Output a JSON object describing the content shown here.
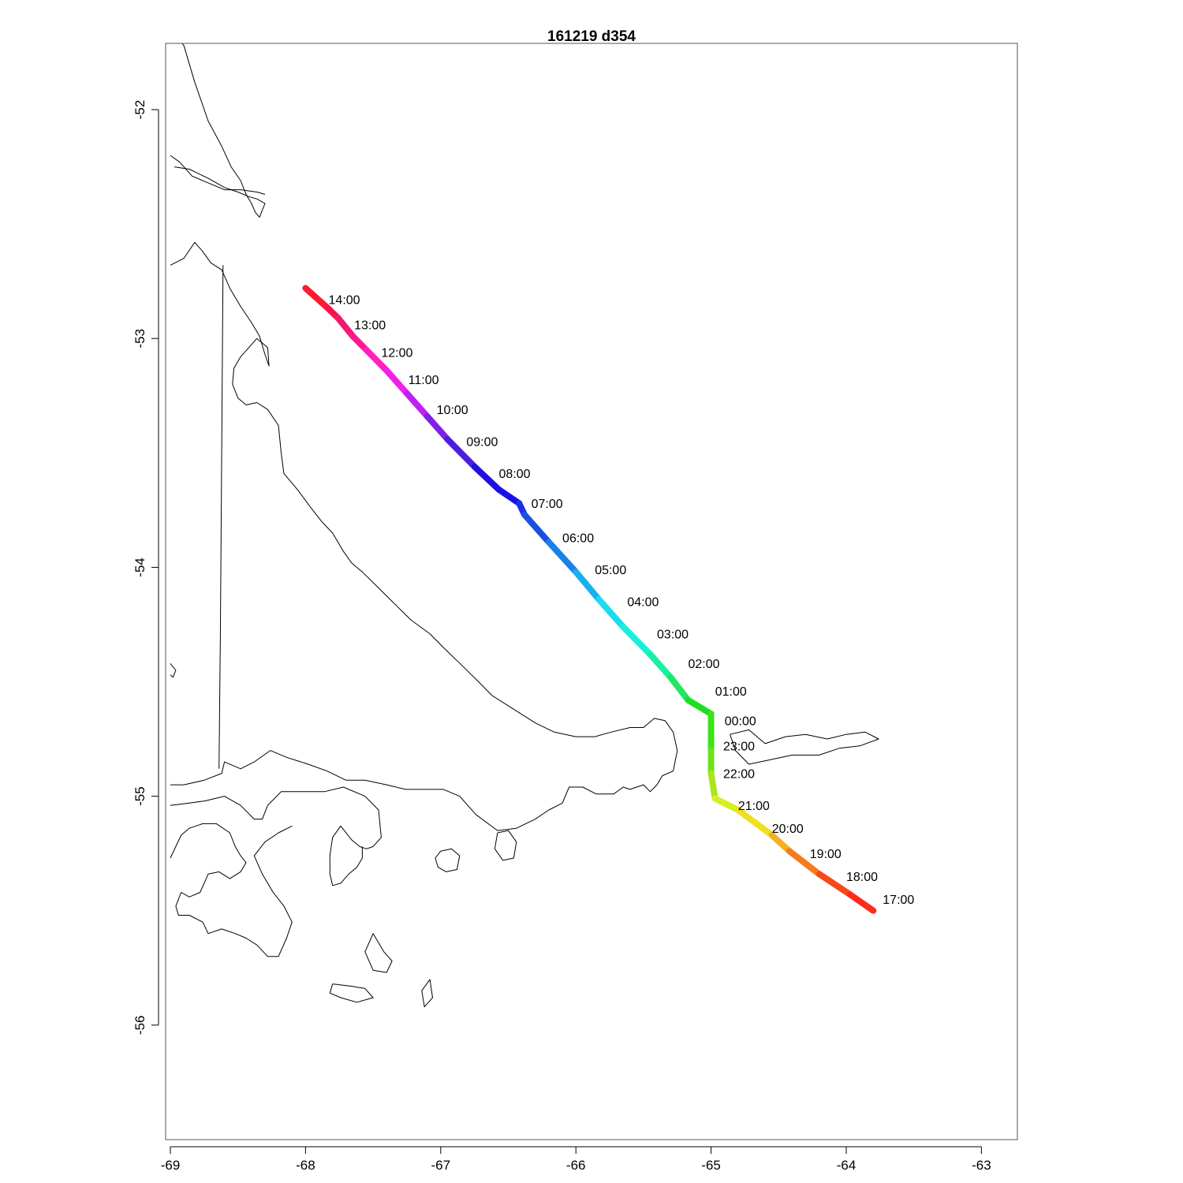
{
  "map": {
    "title": "161219   d354",
    "x_axis": {
      "range": [
        -69.0,
        -62.75
      ],
      "ticks": [
        -69,
        -68,
        -67,
        -66,
        -65,
        -64,
        -63
      ],
      "tick_labels": [
        "-69",
        "-68",
        "-67",
        "-66",
        "-65",
        "-64",
        "-63"
      ]
    },
    "y_axis": {
      "range": [
        -56.5,
        -51.7
      ],
      "ticks": [
        -52,
        -53,
        -54,
        -55,
        -56
      ],
      "tick_labels": [
        "-52",
        "-53",
        "-54",
        "-55",
        "-56"
      ]
    },
    "track": {
      "color_scale": "rainbow hue over time",
      "points": [
        {
          "lon": -68.0,
          "lat": -52.78,
          "color": "#ff1a1a"
        },
        {
          "lon": -67.83,
          "lat": -52.87,
          "color": "#ff1a33"
        },
        {
          "lon": -67.76,
          "lat": -52.91,
          "color": "#f5144d"
        },
        {
          "lon": -67.65,
          "lat": -52.99,
          "color": "#f01a70"
        },
        {
          "lon": -67.55,
          "lat": -53.05,
          "color": "#ff1a90"
        },
        {
          "lon": -67.4,
          "lat": -53.14,
          "color": "#ff20c0"
        },
        {
          "lon": -67.25,
          "lat": -53.24,
          "color": "#f020e8"
        },
        {
          "lon": -67.1,
          "lat": -53.34,
          "color": "#c020f0"
        },
        {
          "lon": -66.95,
          "lat": -53.44,
          "color": "#8020e8"
        },
        {
          "lon": -66.75,
          "lat": -53.56,
          "color": "#4a20dc"
        },
        {
          "lon": -66.57,
          "lat": -53.66,
          "color": "#2010e0"
        },
        {
          "lon": -66.42,
          "lat": -53.72,
          "color": "#1a10e8"
        },
        {
          "lon": -66.38,
          "lat": -53.77,
          "color": "#1a30e8"
        },
        {
          "lon": -66.2,
          "lat": -53.89,
          "color": "#1a50e0"
        },
        {
          "lon": -66.0,
          "lat": -54.02,
          "color": "#1a80ea"
        },
        {
          "lon": -65.83,
          "lat": -54.14,
          "color": "#1ab0f0"
        },
        {
          "lon": -65.65,
          "lat": -54.26,
          "color": "#1adcf0"
        },
        {
          "lon": -65.45,
          "lat": -54.38,
          "color": "#1af0d8"
        },
        {
          "lon": -65.3,
          "lat": -54.48,
          "color": "#1af0a0"
        },
        {
          "lon": -65.17,
          "lat": -54.58,
          "color": "#20e860"
        },
        {
          "lon": -65.0,
          "lat": -54.64,
          "color": "#1ae020"
        },
        {
          "lon": -65.0,
          "lat": -54.8,
          "color": "#40e01a"
        },
        {
          "lon": -65.0,
          "lat": -54.9,
          "color": "#70e01a"
        },
        {
          "lon": -64.97,
          "lat": -55.01,
          "color": "#a8e61a"
        },
        {
          "lon": -64.8,
          "lat": -55.06,
          "color": "#d8f020"
        },
        {
          "lon": -64.55,
          "lat": -55.17,
          "color": "#f0e020"
        },
        {
          "lon": -64.42,
          "lat": -55.24,
          "color": "#f5b020"
        },
        {
          "lon": -64.2,
          "lat": -55.34,
          "color": "#f57a20"
        },
        {
          "lon": -63.97,
          "lat": -55.43,
          "color": "#f54a1a"
        },
        {
          "lon": -63.8,
          "lat": -55.5,
          "color": "#ff2a1a"
        }
      ],
      "time_labels": [
        {
          "text": "14:00",
          "lon": -67.83,
          "lat": -52.85
        },
        {
          "text": "13:00",
          "lon": -67.64,
          "lat": -52.96
        },
        {
          "text": "12:00",
          "lon": -67.44,
          "lat": -53.08
        },
        {
          "text": "11:00",
          "lon": -67.24,
          "lat": -53.2
        },
        {
          "text": "10:00",
          "lon": -67.03,
          "lat": -53.33
        },
        {
          "text": "09:00",
          "lon": -66.81,
          "lat": -53.47
        },
        {
          "text": "08:00",
          "lon": -66.57,
          "lat": -53.61
        },
        {
          "text": "07:00",
          "lon": -66.33,
          "lat": -53.74
        },
        {
          "text": "06:00",
          "lon": -66.1,
          "lat": -53.89
        },
        {
          "text": "05:00",
          "lon": -65.86,
          "lat": -54.03
        },
        {
          "text": "04:00",
          "lon": -65.62,
          "lat": -54.17
        },
        {
          "text": "03:00",
          "lon": -65.4,
          "lat": -54.31
        },
        {
          "text": "02:00",
          "lon": -65.17,
          "lat": -54.44
        },
        {
          "text": "01:00",
          "lon": -64.97,
          "lat": -54.56
        },
        {
          "text": "00:00",
          "lon": -64.9,
          "lat": -54.69
        },
        {
          "text": "23:00",
          "lon": -64.91,
          "lat": -54.8
        },
        {
          "text": "22:00",
          "lon": -64.91,
          "lat": -54.92
        },
        {
          "text": "21:00",
          "lon": -64.8,
          "lat": -55.06
        },
        {
          "text": "20:00",
          "lon": -64.55,
          "lat": -55.16
        },
        {
          "text": "19:00",
          "lon": -64.27,
          "lat": -55.27
        },
        {
          "text": "18:00",
          "lon": -64.0,
          "lat": -55.37
        },
        {
          "text": "17:00",
          "lon": -63.73,
          "lat": -55.47
        }
      ]
    },
    "coastlines": [
      [
        [
          -69.0,
          -51.65
        ],
        [
          -68.9,
          -51.72
        ],
        [
          -68.82,
          -51.88
        ],
        [
          -68.72,
          -52.05
        ],
        [
          -68.62,
          -52.16
        ],
        [
          -68.55,
          -52.25
        ],
        [
          -68.48,
          -52.31
        ],
        [
          -68.44,
          -52.37
        ],
        [
          -68.4,
          -52.41
        ],
        [
          -68.37,
          -52.45
        ],
        [
          -68.34,
          -52.47
        ],
        [
          -68.3,
          -52.41
        ],
        [
          -68.36,
          -52.39
        ],
        [
          -68.42,
          -52.38
        ],
        [
          -68.5,
          -52.36
        ],
        [
          -68.6,
          -52.34
        ],
        [
          -68.72,
          -52.3
        ],
        [
          -68.86,
          -52.26
        ],
        [
          -68.97,
          -52.25
        ]
      ],
      [
        [
          -69.0,
          -52.2
        ],
        [
          -68.93,
          -52.23
        ],
        [
          -68.84,
          -52.29
        ],
        [
          -68.72,
          -52.32
        ],
        [
          -68.6,
          -52.35
        ],
        [
          -68.48,
          -52.35
        ],
        [
          -68.36,
          -52.36
        ],
        [
          -68.3,
          -52.37
        ]
      ],
      [
        [
          -69.0,
          -52.68
        ],
        [
          -68.9,
          -52.65
        ],
        [
          -68.82,
          -52.58
        ],
        [
          -68.76,
          -52.62
        ],
        [
          -68.7,
          -52.67
        ],
        [
          -68.62,
          -52.7
        ],
        [
          -68.56,
          -52.78
        ],
        [
          -68.48,
          -52.86
        ],
        [
          -68.4,
          -52.93
        ],
        [
          -68.34,
          -52.99
        ],
        [
          -68.3,
          -53.07
        ],
        [
          -68.27,
          -53.12
        ],
        [
          -68.28,
          -53.04
        ],
        [
          -68.32,
          -53.02
        ],
        [
          -68.36,
          -53.0
        ],
        [
          -68.42,
          -53.04
        ],
        [
          -68.48,
          -53.08
        ],
        [
          -68.53,
          -53.13
        ],
        [
          -68.54,
          -53.2
        ],
        [
          -68.5,
          -53.26
        ],
        [
          -68.44,
          -53.29
        ],
        [
          -68.36,
          -53.28
        ],
        [
          -68.28,
          -53.31
        ],
        [
          -68.2,
          -53.38
        ],
        [
          -68.18,
          -53.5
        ],
        [
          -68.16,
          -53.59
        ],
        [
          -68.06,
          -53.66
        ],
        [
          -67.96,
          -53.74
        ],
        [
          -67.88,
          -53.8
        ],
        [
          -67.8,
          -53.85
        ],
        [
          -67.72,
          -53.93
        ],
        [
          -67.66,
          -53.98
        ],
        [
          -67.58,
          -54.02
        ],
        [
          -67.46,
          -54.09
        ],
        [
          -67.34,
          -54.16
        ],
        [
          -67.22,
          -54.23
        ],
        [
          -67.08,
          -54.29
        ],
        [
          -66.98,
          -54.35
        ],
        [
          -66.84,
          -54.43
        ],
        [
          -66.72,
          -54.5
        ],
        [
          -66.62,
          -54.56
        ],
        [
          -66.46,
          -54.62
        ],
        [
          -66.3,
          -54.68
        ],
        [
          -66.16,
          -54.72
        ],
        [
          -66.0,
          -54.74
        ],
        [
          -65.86,
          -54.74
        ],
        [
          -65.74,
          -54.72
        ],
        [
          -65.6,
          -54.7
        ],
        [
          -65.5,
          -54.7
        ],
        [
          -65.42,
          -54.66
        ],
        [
          -65.34,
          -54.67
        ],
        [
          -65.28,
          -54.72
        ],
        [
          -65.25,
          -54.8
        ],
        [
          -65.28,
          -54.89
        ],
        [
          -65.36,
          -54.91
        ],
        [
          -65.4,
          -54.95
        ],
        [
          -65.45,
          -54.98
        ],
        [
          -65.5,
          -54.95
        ],
        [
          -65.55,
          -54.96
        ],
        [
          -65.6,
          -54.97
        ],
        [
          -65.65,
          -54.96
        ],
        [
          -65.72,
          -54.99
        ],
        [
          -65.85,
          -54.99
        ],
        [
          -65.95,
          -54.96
        ],
        [
          -66.05,
          -54.96
        ],
        [
          -66.1,
          -55.03
        ],
        [
          -66.2,
          -55.06
        ],
        [
          -66.3,
          -55.1
        ],
        [
          -66.44,
          -55.14
        ],
        [
          -66.58,
          -55.15
        ],
        [
          -66.74,
          -55.08
        ],
        [
          -66.86,
          -55.0
        ],
        [
          -66.98,
          -54.97
        ],
        [
          -67.12,
          -54.97
        ],
        [
          -67.26,
          -54.97
        ],
        [
          -67.4,
          -54.95
        ],
        [
          -67.56,
          -54.93
        ],
        [
          -67.7,
          -54.93
        ],
        [
          -67.84,
          -54.89
        ],
        [
          -67.98,
          -54.86
        ],
        [
          -68.14,
          -54.83
        ],
        [
          -68.26,
          -54.8
        ],
        [
          -68.38,
          -54.85
        ],
        [
          -68.48,
          -54.88
        ],
        [
          -68.6,
          -54.85
        ],
        [
          -68.62,
          -54.9
        ],
        [
          -68.75,
          -54.93
        ],
        [
          -68.9,
          -54.95
        ],
        [
          -69.0,
          -54.95
        ]
      ],
      [
        [
          -68.61,
          -52.68
        ],
        [
          -68.62,
          -53.5
        ],
        [
          -68.63,
          -54.3
        ],
        [
          -68.64,
          -54.88
        ]
      ],
      [
        [
          -69.0,
          -55.04
        ],
        [
          -68.86,
          -55.03
        ],
        [
          -68.74,
          -55.02
        ],
        [
          -68.6,
          -55.0
        ],
        [
          -68.48,
          -55.04
        ],
        [
          -68.38,
          -55.1
        ],
        [
          -68.32,
          -55.1
        ],
        [
          -68.28,
          -55.04
        ],
        [
          -68.18,
          -54.98
        ],
        [
          -68.02,
          -54.98
        ],
        [
          -67.86,
          -54.98
        ],
        [
          -67.72,
          -54.96
        ],
        [
          -67.56,
          -55.0
        ],
        [
          -67.46,
          -55.06
        ],
        [
          -67.44,
          -55.18
        ],
        [
          -67.5,
          -55.22
        ],
        [
          -67.55,
          -55.23
        ],
        [
          -67.6,
          -55.22
        ],
        [
          -67.66,
          -55.19
        ],
        [
          -67.74,
          -55.13
        ],
        [
          -67.8,
          -55.18
        ],
        [
          -67.82,
          -55.26
        ],
        [
          -67.82,
          -55.34
        ],
        [
          -67.8,
          -55.39
        ],
        [
          -67.74,
          -55.38
        ],
        [
          -67.68,
          -55.34
        ],
        [
          -67.62,
          -55.31
        ],
        [
          -67.58,
          -55.27
        ],
        [
          -67.58,
          -55.22
        ]
      ],
      [
        [
          -69.0,
          -55.27
        ],
        [
          -68.96,
          -55.22
        ],
        [
          -68.92,
          -55.17
        ],
        [
          -68.86,
          -55.14
        ],
        [
          -68.76,
          -55.12
        ],
        [
          -68.66,
          -55.12
        ],
        [
          -68.56,
          -55.16
        ],
        [
          -68.52,
          -55.22
        ],
        [
          -68.48,
          -55.26
        ],
        [
          -68.44,
          -55.29
        ],
        [
          -68.48,
          -55.33
        ],
        [
          -68.56,
          -55.36
        ],
        [
          -68.64,
          -55.33
        ],
        [
          -68.72,
          -55.34
        ],
        [
          -68.78,
          -55.42
        ],
        [
          -68.86,
          -55.44
        ],
        [
          -68.92,
          -55.42
        ],
        [
          -68.96,
          -55.48
        ],
        [
          -68.94,
          -55.52
        ],
        [
          -68.86,
          -55.52
        ],
        [
          -68.76,
          -55.55
        ],
        [
          -68.72,
          -55.6
        ],
        [
          -68.62,
          -55.58
        ],
        [
          -68.52,
          -55.6
        ],
        [
          -68.44,
          -55.62
        ],
        [
          -68.36,
          -55.65
        ],
        [
          -68.28,
          -55.7
        ],
        [
          -68.2,
          -55.7
        ],
        [
          -68.14,
          -55.62
        ],
        [
          -68.1,
          -55.55
        ],
        [
          -68.16,
          -55.48
        ],
        [
          -68.24,
          -55.42
        ],
        [
          -68.32,
          -55.34
        ],
        [
          -68.38,
          -55.26
        ],
        [
          -68.3,
          -55.2
        ],
        [
          -68.2,
          -55.16
        ],
        [
          -68.1,
          -55.13
        ]
      ],
      [
        [
          -67.0,
          -55.24
        ],
        [
          -66.92,
          -55.23
        ],
        [
          -66.86,
          -55.26
        ],
        [
          -66.88,
          -55.32
        ],
        [
          -66.96,
          -55.33
        ],
        [
          -67.02,
          -55.31
        ],
        [
          -67.04,
          -55.27
        ],
        [
          -67.0,
          -55.24
        ]
      ],
      [
        [
          -66.58,
          -55.16
        ],
        [
          -66.5,
          -55.15
        ],
        [
          -66.44,
          -55.2
        ],
        [
          -66.46,
          -55.27
        ],
        [
          -66.54,
          -55.28
        ],
        [
          -66.6,
          -55.23
        ],
        [
          -66.58,
          -55.16
        ]
      ],
      [
        [
          -64.86,
          -54.73
        ],
        [
          -64.72,
          -54.71
        ],
        [
          -64.6,
          -54.77
        ],
        [
          -64.45,
          -54.74
        ],
        [
          -64.3,
          -54.73
        ],
        [
          -64.14,
          -54.75
        ],
        [
          -64.0,
          -54.73
        ],
        [
          -63.86,
          -54.72
        ],
        [
          -63.76,
          -54.75
        ],
        [
          -63.9,
          -54.78
        ],
        [
          -64.05,
          -54.79
        ],
        [
          -64.2,
          -54.82
        ],
        [
          -64.4,
          -54.82
        ],
        [
          -64.56,
          -54.84
        ],
        [
          -64.72,
          -54.86
        ],
        [
          -64.82,
          -54.8
        ],
        [
          -64.86,
          -54.73
        ]
      ],
      [
        [
          -67.5,
          -55.6
        ],
        [
          -67.42,
          -55.68
        ],
        [
          -67.36,
          -55.72
        ],
        [
          -67.4,
          -55.77
        ],
        [
          -67.5,
          -55.76
        ],
        [
          -67.56,
          -55.68
        ],
        [
          -67.5,
          -55.6
        ]
      ],
      [
        [
          -67.8,
          -55.82
        ],
        [
          -67.66,
          -55.83
        ],
        [
          -67.56,
          -55.84
        ],
        [
          -67.5,
          -55.88
        ],
        [
          -67.62,
          -55.9
        ],
        [
          -67.74,
          -55.88
        ],
        [
          -67.82,
          -55.86
        ],
        [
          -67.8,
          -55.82
        ]
      ],
      [
        [
          -67.08,
          -55.8
        ],
        [
          -67.14,
          -55.85
        ],
        [
          -67.12,
          -55.92
        ],
        [
          -67.06,
          -55.88
        ],
        [
          -67.08,
          -55.8
        ]
      ],
      [
        [
          -69.0,
          -54.42
        ],
        [
          -68.96,
          -54.45
        ],
        [
          -68.98,
          -54.48
        ],
        [
          -69.0,
          -54.47
        ]
      ]
    ]
  }
}
